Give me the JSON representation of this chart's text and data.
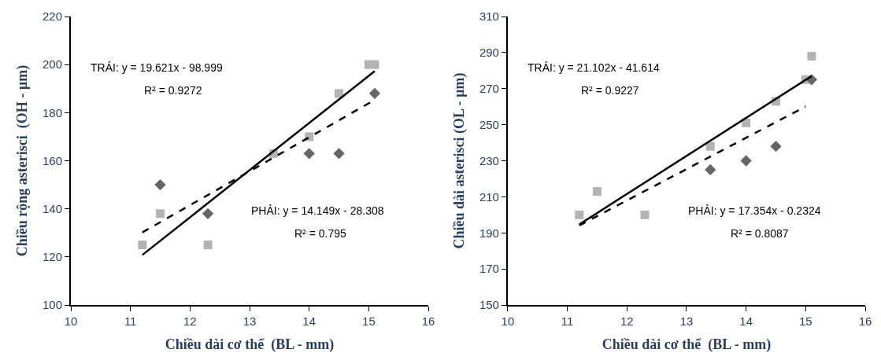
{
  "chart_data": [
    {
      "type": "scatter",
      "xlabel": "Chiều dài cơ thể  (BL - mm)",
      "ylabel": "Chiều rộng asterisci  (OH - µm)",
      "xlim": [
        10,
        16
      ],
      "xticks": [
        10,
        11,
        12,
        13,
        14,
        15,
        16
      ],
      "ylim": [
        100,
        220
      ],
      "yticks": [
        100,
        120,
        140,
        160,
        180,
        200,
        220
      ],
      "annotations": [
        "TRÁI: y = 19.621x - 98.999",
        "R² = 0.9272",
        "PHẢI: y = 14.149x - 28.308",
        "R² = 0.795"
      ],
      "series": [
        {
          "type": "scatter",
          "marker": "square",
          "color": "#b3b3b3",
          "x": [
            11.2,
            11.5,
            12.3,
            13.4,
            14,
            14.5,
            15,
            15.1
          ],
          "values": [
            125,
            138,
            125,
            163,
            170,
            188,
            200,
            200
          ]
        },
        {
          "type": "scatter",
          "marker": "diamond",
          "color": "#666666",
          "x": [
            11.5,
            12.3,
            14,
            14.5,
            15.1
          ],
          "values": [
            150,
            138,
            163,
            163,
            188
          ]
        },
        {
          "type": "line",
          "line_style": "solid",
          "color": "#000000",
          "x": [
            11.2,
            15.1
          ],
          "values": [
            120.8,
            197.3
          ]
        },
        {
          "type": "line",
          "line_style": "dashed",
          "color": "#000000",
          "x": [
            11.2,
            15.1
          ],
          "values": [
            130.2,
            185.3
          ]
        }
      ]
    },
    {
      "type": "scatter",
      "xlabel": "Chiều dài cơ thể  (BL - mm)",
      "ylabel": "Chiều dài asterisci (OL - µm)",
      "xlim": [
        10,
        16
      ],
      "xticks": [
        10,
        11,
        12,
        13,
        14,
        15,
        16
      ],
      "ylim": [
        150,
        310
      ],
      "yticks": [
        150,
        170,
        190,
        210,
        230,
        250,
        270,
        290,
        310
      ],
      "annotations": [
        "TRÁI: y = 21.102x - 41.614",
        "R² = 0.9227",
        "PHẢI: y = 17.354x - 0.2324",
        "R² = 0.8087"
      ],
      "series": [
        {
          "type": "scatter",
          "marker": "square",
          "color": "#b3b3b3",
          "x": [
            11.2,
            11.5,
            12.3,
            13.4,
            14,
            14.5,
            15,
            15.1
          ],
          "values": [
            200,
            213,
            200,
            238,
            251,
            263,
            275,
            288
          ]
        },
        {
          "type": "scatter",
          "marker": "diamond",
          "color": "#666666",
          "x": [
            13.4,
            14,
            14.5,
            15.1
          ],
          "values": [
            225,
            230,
            238,
            275
          ]
        },
        {
          "type": "line",
          "line_style": "solid",
          "color": "#000000",
          "x": [
            11.2,
            15.1
          ],
          "values": [
            194.7,
            277.0
          ]
        },
        {
          "type": "line",
          "line_style": "dashed",
          "color": "#000000",
          "x": [
            11.2,
            15.0
          ],
          "values": [
            194.1,
            260.1
          ]
        }
      ]
    }
  ]
}
